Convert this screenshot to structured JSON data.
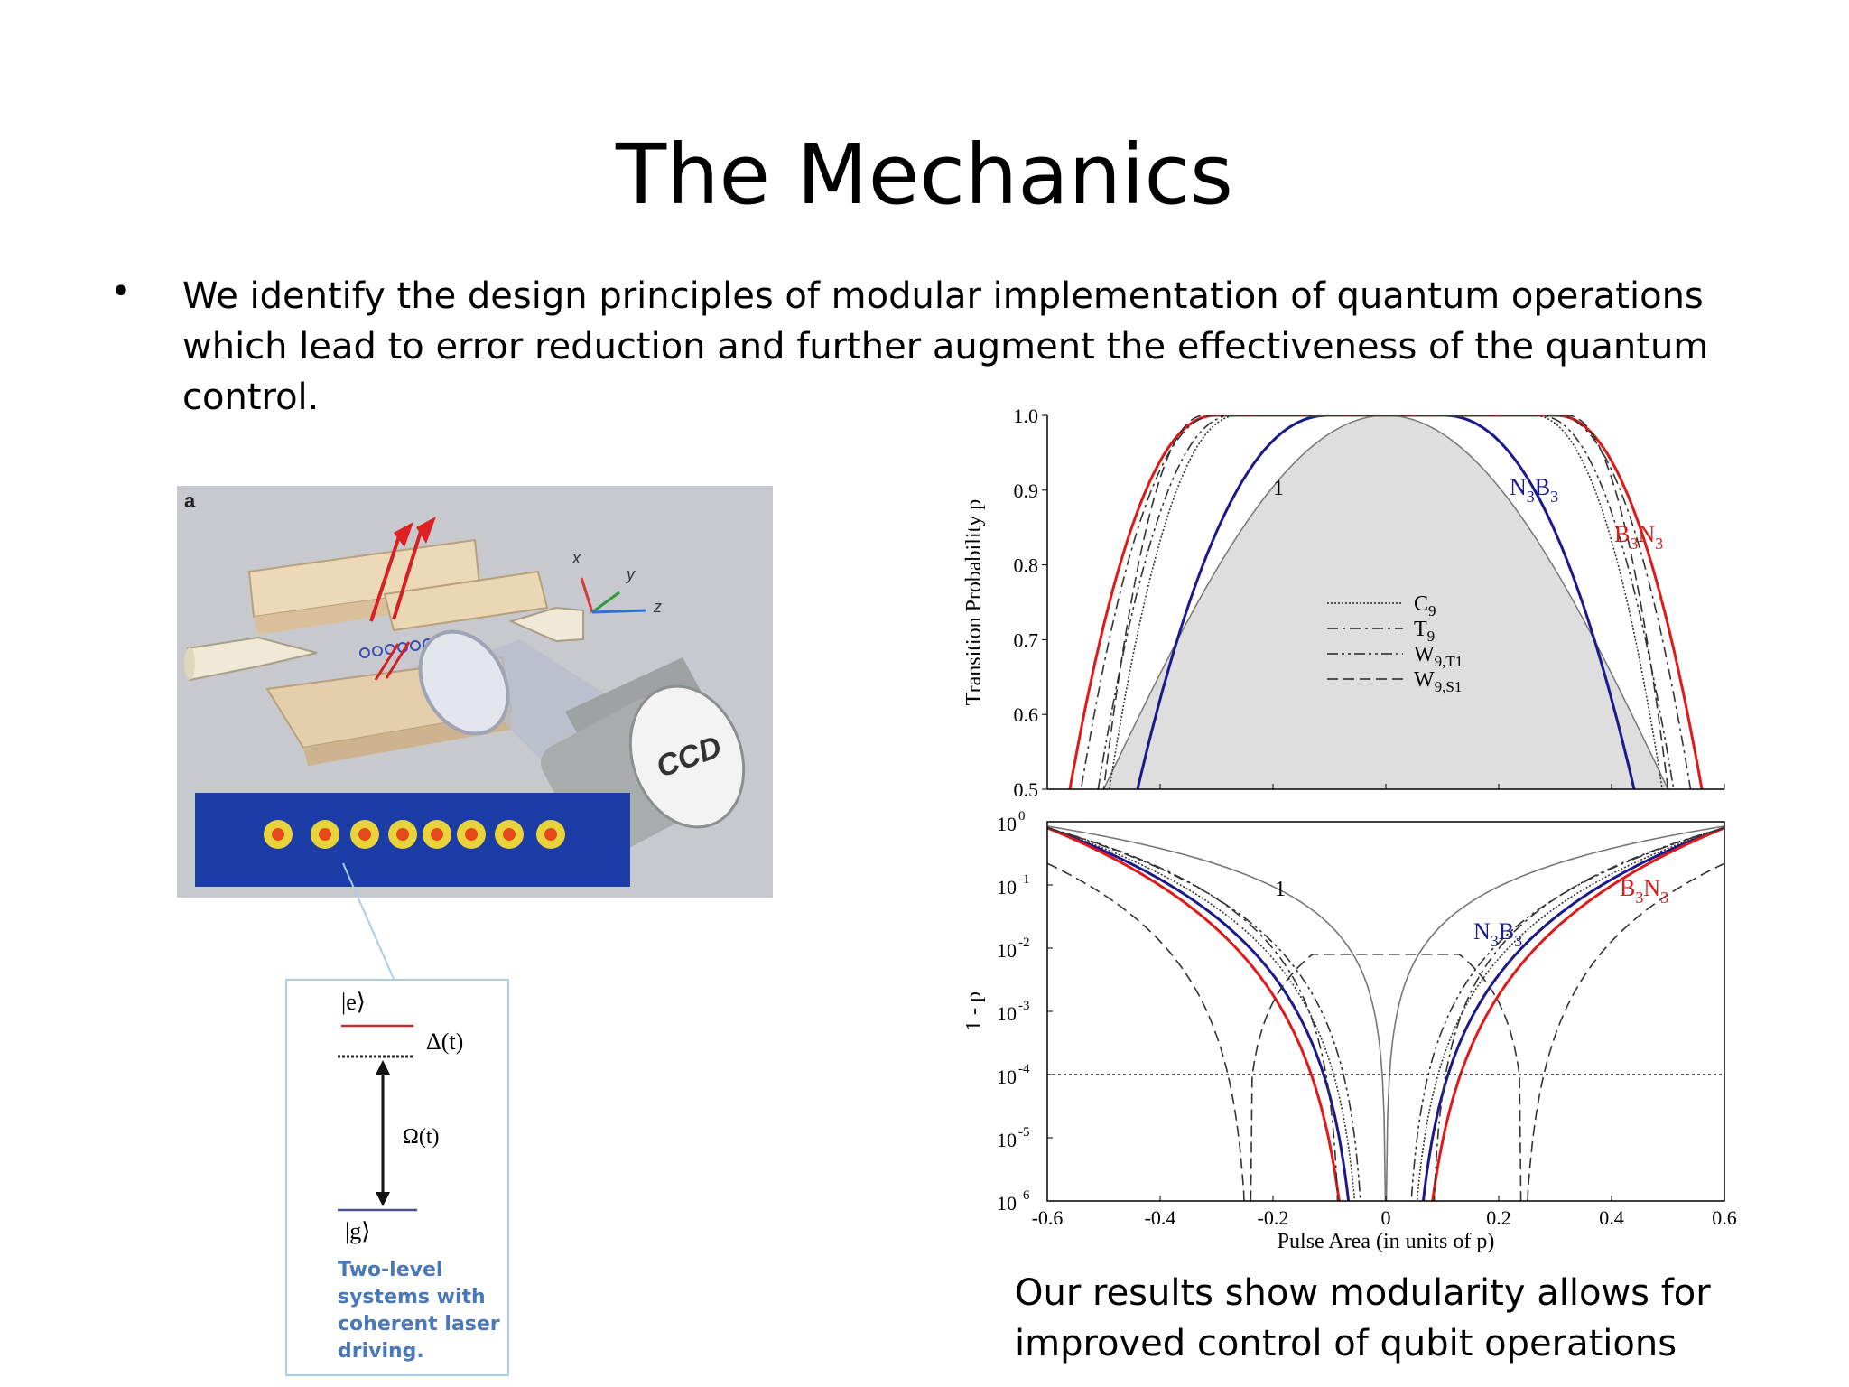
{
  "slide": {
    "title": "The Mechanics",
    "bullet": "We identify the design principles of modular implementation of quantum operations which lead to error reduction and further augment the effectiveness of the quantum control.",
    "conclusion": "Our results show modularity allows for improved control of qubit operations"
  },
  "trap_figure": {
    "panel_label": "a",
    "axes": [
      "x",
      "y",
      "z"
    ],
    "detector_label": "CCD",
    "ion_count": 8,
    "colors": {
      "background": "#c7c9cf",
      "electrode": "#e8d3b0",
      "laser": "#d92020",
      "ccd_field": "#1c3ca6"
    }
  },
  "level_diagram": {
    "excited": "|e⟩",
    "ground": "|g⟩",
    "detuning": "Δ(t)",
    "rabi": "Ω(t)",
    "caption": "Two-level systems with coherent laser driving."
  },
  "chart_data": [
    {
      "type": "line",
      "ylabel": "Transition Probability p",
      "ylim": [
        0.5,
        1.0
      ],
      "yticks": [
        "0.5",
        "0.6",
        "0.7",
        "0.8",
        "0.9",
        "1.0"
      ],
      "xlim": [
        -0.6,
        0.6
      ],
      "annotations": [
        "1",
        "N3B3",
        "B3N3"
      ],
      "legend": [
        "C9",
        "T9",
        "W9,T1",
        "W9,S1"
      ],
      "series": [
        {
          "name": "1",
          "color": "#777777",
          "style": "solid",
          "fill": "#dedede",
          "plateau": 0.0,
          "halfwidth": 0.5
        },
        {
          "name": "N3B3",
          "color": "#1a1a8c",
          "style": "solid",
          "plateau": 0.1,
          "halfwidth": 0.44
        },
        {
          "name": "B3N3",
          "color": "#e01919",
          "style": "solid",
          "plateau": 0.3,
          "halfwidth": 0.56
        },
        {
          "name": "C9",
          "color": "#333333",
          "style": "dotted",
          "plateau": 0.26,
          "halfwidth": 0.49
        },
        {
          "name": "T9",
          "color": "#333333",
          "style": "dashdot",
          "plateau": 0.3,
          "halfwidth": 0.54
        },
        {
          "name": "W9,T1",
          "color": "#333333",
          "style": "dashdotdot",
          "plateau": 0.27,
          "halfwidth": 0.51
        },
        {
          "name": "W9,S1",
          "color": "#333333",
          "style": "dashed",
          "plateau": 0.32,
          "halfwidth": 0.5
        }
      ]
    },
    {
      "type": "line",
      "ylabel": "1 - p",
      "yscale": "log",
      "ylim": [
        1e-06,
        1
      ],
      "yticks": [
        "10",
        "10",
        "10",
        "10",
        "10",
        "10",
        "10"
      ],
      "ytick_exponents": [
        "0",
        "-1",
        "-2",
        "-3",
        "-4",
        "-5",
        "-6"
      ],
      "xlabel": "Pulse Area (in units of p)",
      "xlim": [
        -0.6,
        0.6
      ],
      "xticks": [
        "-0.6",
        "-0.4",
        "-0.2",
        "0",
        "0.2",
        "0.4",
        "0.6"
      ],
      "threshold": 0.0001,
      "annotations": [
        "1",
        "N3B3",
        "B3N3"
      ]
    }
  ]
}
